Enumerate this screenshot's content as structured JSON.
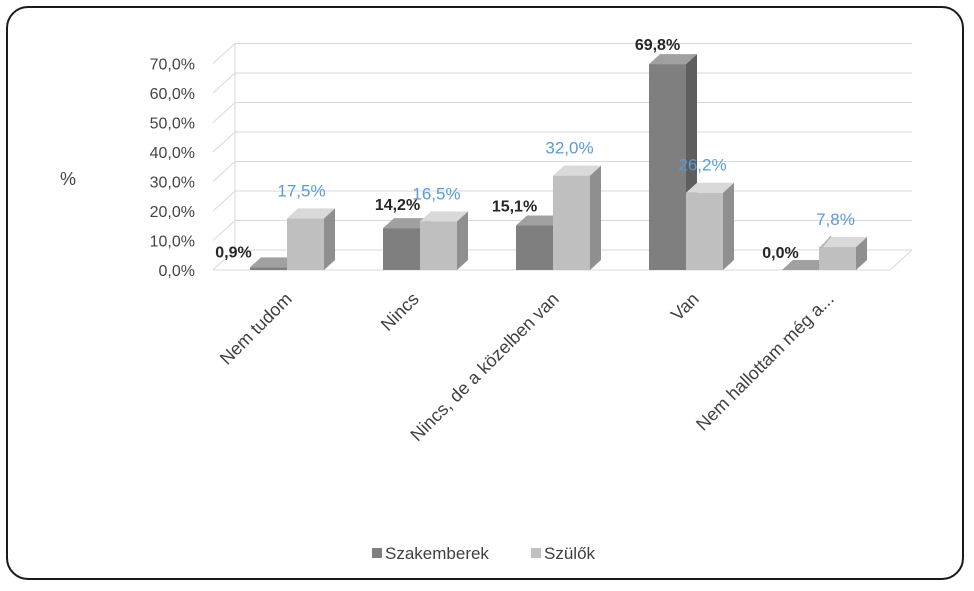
{
  "chart_data": {
    "type": "bar",
    "title": "",
    "xlabel": "",
    "ylabel": "%",
    "categories": [
      "Nem tudom",
      "Nincs",
      "Nincs, de a közelben van",
      "Van",
      "Nem hallottam még a..."
    ],
    "series": [
      {
        "name": "Szakemberek",
        "values": [
          0.9,
          14.2,
          15.1,
          69.8,
          0.0
        ],
        "labels": [
          "0,9%",
          "14,2%",
          "15,1%",
          "69,8%",
          "0,0%"
        ]
      },
      {
        "name": "Szülők",
        "values": [
          17.5,
          16.5,
          32.0,
          26.2,
          7.8
        ],
        "labels": [
          "17,5%",
          "16,5%",
          "32,0%",
          "26,2%",
          "7,8%"
        ]
      }
    ],
    "yticks": [
      "0,0%",
      "10,0%",
      "20,0%",
      "30,0%",
      "40,0%",
      "50,0%",
      "60,0%",
      "70,0%"
    ],
    "ylim": [
      0,
      70
    ],
    "grid": true,
    "legend": "bottom",
    "style": "3d-clustered-column"
  },
  "colors": {
    "szakemberek_front": "#7f7f7f",
    "szakemberek_side": "#5e5e5e",
    "szakemberek_top": "#a0a0a0",
    "szulok_front": "#bfbfbf",
    "szulok_side": "#8f8f8f",
    "szulok_top": "#d9d9d9",
    "szakemberek_label": "#262626",
    "szulok_label": "#5b9bd5"
  }
}
